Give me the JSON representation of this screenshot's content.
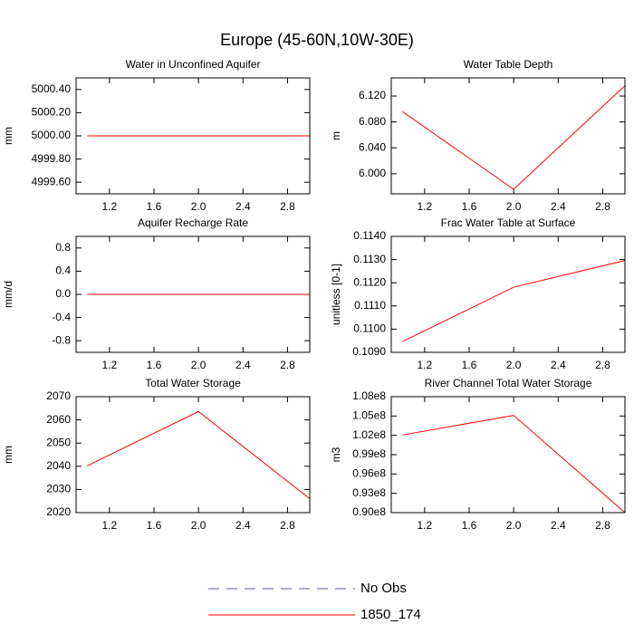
{
  "title": "Europe (45-60N,10W-30E)",
  "legend": {
    "entries": [
      {
        "name": "No Obs",
        "color": "#5b5b9b",
        "dashed": true
      },
      {
        "name": "1850_174",
        "color": "#ff0000",
        "dashed": false
      }
    ]
  },
  "chart_data": [
    {
      "type": "line",
      "title": "Water in Unconfined Aquifer",
      "y_label": "mm",
      "color": "#ff0000",
      "x": [
        1,
        2,
        3
      ],
      "values": [
        5000,
        5000,
        5000
      ],
      "xlim": [
        0.9,
        3.0
      ],
      "xticks": [
        1.2,
        1.6,
        {
          "value": 2,
          "label": "2.0"
        },
        2.4,
        2.8
      ],
      "ylim": [
        4999.5,
        5000.5
      ],
      "yticks": [
        {
          "value": 4999.6,
          "label": "4999.60"
        },
        {
          "value": 4999.8,
          "label": "4999.80"
        },
        {
          "value": 5000,
          "label": "5000.00"
        },
        {
          "value": 5000.2,
          "label": "5000.20"
        },
        {
          "value": 5000.4,
          "label": "5000.40"
        }
      ]
    },
    {
      "type": "line",
      "title": "Water Table Depth",
      "y_label": "m",
      "color": "#ff0000",
      "x": [
        1,
        2,
        3
      ],
      "values": [
        6.096,
        5.976,
        6.136
      ],
      "xlim": [
        0.9,
        3.0
      ],
      "xticks": [
        1.2,
        1.6,
        {
          "value": 2,
          "label": "2.0"
        },
        2.4,
        2.8
      ],
      "ylim": [
        5.969,
        6.148
      ],
      "yticks": [
        {
          "value": 6.0,
          "label": "6.000"
        },
        {
          "value": 6.04,
          "label": "6.040"
        },
        {
          "value": 6.08,
          "label": "6.080"
        },
        {
          "value": 6.12,
          "label": "6.120"
        }
      ]
    },
    {
      "type": "line",
      "title": "Aquifer Recharge Rate",
      "y_label": "mm/d",
      "color": "#ff0000",
      "x": [
        1,
        2,
        3
      ],
      "values": [
        0,
        0,
        0
      ],
      "xlim": [
        0.9,
        3.0
      ],
      "xticks": [
        1.2,
        1.6,
        {
          "value": 2,
          "label": "2.0"
        },
        2.4,
        2.8
      ],
      "ylim": [
        -1,
        1
      ],
      "yticks": [
        -0.8,
        -0.4,
        {
          "value": 0,
          "label": "0.0"
        },
        0.4,
        0.8
      ]
    },
    {
      "type": "line",
      "title": "Frac Water Table at Surface",
      "y_label": "unitless [0-1]",
      "color": "#ff0000",
      "x": [
        1,
        2,
        3
      ],
      "values": [
        0.10946,
        0.11181,
        0.11296
      ],
      "xlim": [
        0.9,
        3.0
      ],
      "xticks": [
        1.2,
        1.6,
        {
          "value": 2,
          "label": "2.0"
        },
        2.4,
        2.8
      ],
      "ylim": [
        0.109,
        0.114
      ],
      "yticks": [
        {
          "value": 0.109,
          "label": "0.1090"
        },
        {
          "value": 0.11,
          "label": "0.1100"
        },
        {
          "value": 0.111,
          "label": "0.1110"
        },
        {
          "value": 0.112,
          "label": "0.1120"
        },
        {
          "value": 0.113,
          "label": "0.1130"
        },
        {
          "value": 0.114,
          "label": "0.1140"
        }
      ]
    },
    {
      "type": "line",
      "title": "Total Water Storage",
      "y_label": "mm",
      "color": "#ff0000",
      "x": [
        1,
        2,
        3
      ],
      "values": [
        2040.2,
        2063.6,
        2026
      ],
      "xlim": [
        0.9,
        3.0
      ],
      "xticks": [
        1.2,
        1.6,
        {
          "value": 2,
          "label": "2.0"
        },
        2.4,
        2.8
      ],
      "ylim": [
        2020,
        2070
      ],
      "yticks": [
        2020,
        2030,
        2040,
        2050,
        2060,
        2070
      ]
    },
    {
      "type": "line",
      "title": "River Channel Total Water Storage",
      "y_label": "m3",
      "color": "#ff0000",
      "x": [
        1,
        2,
        3
      ],
      "values": [
        102050000,
        105100000,
        90000000
      ],
      "xlim": [
        0.9,
        3.0
      ],
      "xticks": [
        1.2,
        1.6,
        {
          "value": 2,
          "label": "2.0"
        },
        2.4,
        2.8
      ],
      "ylim": [
        90000000,
        108000000
      ],
      "yticks": [
        {
          "value": 90000000,
          "label": "0.90e8"
        },
        {
          "value": 93000000,
          "label": "0.93e8"
        },
        {
          "value": 96000000,
          "label": "0.96e8"
        },
        {
          "value": 99000000,
          "label": "0.99e8"
        },
        {
          "value": 102000000,
          "label": "1.02e8"
        },
        {
          "value": 105000000,
          "label": "1.05e8"
        },
        {
          "value": 108000000,
          "label": "1.08e8"
        }
      ]
    }
  ]
}
